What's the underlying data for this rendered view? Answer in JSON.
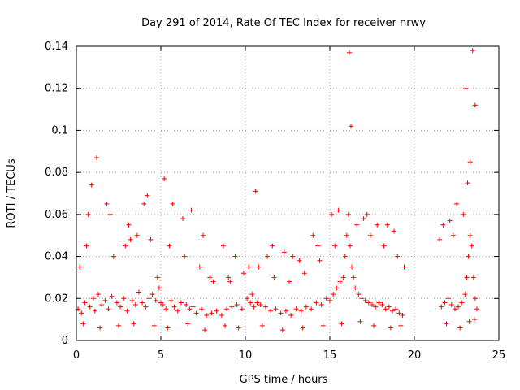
{
  "chart_data": {
    "type": "scatter",
    "title": "Day 291 of 2014, Rate Of TEC Index for receiver nrwy",
    "xlabel": "GPS time / hours",
    "ylabel": "ROTI / TECUs",
    "xlim": [
      0,
      25
    ],
    "ylim": [
      0,
      0.14
    ],
    "xticks": [
      0,
      5,
      10,
      15,
      20,
      25
    ],
    "xtick_labels": [
      "0",
      "5",
      "10",
      "15",
      "20",
      "25"
    ],
    "yticks": [
      0,
      0.02,
      0.04,
      0.06,
      0.08,
      0.1,
      0.12,
      0.14
    ],
    "ytick_labels": [
      "0",
      "0.02",
      "0.04",
      "0.06",
      "0.08",
      "0.1",
      "0.12",
      "0.14"
    ],
    "grid": true,
    "marker": "+",
    "series": [
      {
        "name": "ROTI",
        "color": "#ff0000",
        "x": [
          0.1,
          0.3,
          0.5,
          0.8,
          1.0,
          1.1,
          1.3,
          1.5,
          1.7,
          1.9,
          2.1,
          2.4,
          2.6,
          2.8,
          3.0,
          3.3,
          3.5,
          3.7,
          3.9,
          4.1,
          4.3,
          4.5,
          4.7,
          4.8,
          4.9,
          5.0,
          5.1,
          5.3,
          5.6,
          5.8,
          6.0,
          6.2,
          6.5,
          6.7,
          6.9,
          7.1,
          7.4,
          7.7,
          8.0,
          8.3,
          8.6,
          8.9,
          9.2,
          9.5,
          9.8,
          10.1,
          10.3,
          10.4,
          10.5,
          10.7,
          10.9,
          11.2,
          11.5,
          11.8,
          12.1,
          12.4,
          12.7,
          13.0,
          13.3,
          13.6,
          13.9,
          14.2,
          14.5,
          14.8,
          15.0,
          15.2,
          15.4,
          15.6,
          15.8,
          15.9,
          16.0,
          16.1,
          16.2,
          16.3,
          16.4,
          16.5,
          16.7,
          16.9,
          17.1,
          17.3,
          17.5,
          17.7,
          17.9,
          18.1,
          18.3,
          18.5,
          18.7,
          18.9,
          19.1,
          19.3,
          21.6,
          21.8,
          22.0,
          22.2,
          22.4,
          22.6,
          22.8,
          23.0,
          23.1,
          23.2,
          23.3,
          23.4,
          23.5,
          23.6,
          23.7,
          0.2,
          0.7,
          1.2,
          2.2,
          2.9,
          3.6,
          4.4,
          5.5,
          6.4,
          7.3,
          8.1,
          9.0,
          9.9,
          10.8,
          11.7,
          12.6,
          13.5,
          14.4,
          15.3,
          16.6,
          17.4,
          18.2,
          19.0,
          21.7,
          22.3,
          22.9,
          23.3,
          23.45,
          0.4,
          1.4,
          2.5,
          3.4,
          4.6,
          5.4,
          6.6,
          7.6,
          8.8,
          9.6,
          11.0,
          12.2,
          13.4,
          14.6,
          15.7,
          16.8,
          17.6,
          18.6,
          19.2,
          21.9,
          22.7,
          23.25,
          23.55,
          0.6,
          1.8,
          3.1,
          4.2,
          5.2,
          6.3,
          7.5,
          8.7,
          9.4,
          10.6,
          11.6,
          12.8,
          14.0,
          15.1,
          16.15,
          17.2,
          18.4,
          19.4,
          22.1,
          23.05,
          23.6,
          0.9,
          2.0,
          3.2,
          4.0,
          5.7,
          6.8,
          7.9,
          9.1,
          10.2,
          11.3,
          12.3,
          13.2,
          14.3,
          15.5,
          16.25,
          17.0,
          17.8,
          18.8,
          21.5,
          22.5,
          23.15
        ],
        "y": [
          0.015,
          0.013,
          0.018,
          0.016,
          0.02,
          0.014,
          0.022,
          0.017,
          0.019,
          0.015,
          0.021,
          0.018,
          0.016,
          0.02,
          0.014,
          0.019,
          0.017,
          0.023,
          0.018,
          0.016,
          0.02,
          0.022,
          0.019,
          0.03,
          0.025,
          0.018,
          0.017,
          0.015,
          0.019,
          0.016,
          0.014,
          0.018,
          0.017,
          0.015,
          0.016,
          0.013,
          0.015,
          0.012,
          0.013,
          0.014,
          0.012,
          0.015,
          0.016,
          0.017,
          0.015,
          0.02,
          0.018,
          0.022,
          0.016,
          0.018,
          0.017,
          0.016,
          0.014,
          0.015,
          0.013,
          0.014,
          0.012,
          0.015,
          0.014,
          0.016,
          0.015,
          0.018,
          0.017,
          0.02,
          0.019,
          0.022,
          0.025,
          0.028,
          0.03,
          0.04,
          0.05,
          0.06,
          0.045,
          0.035,
          0.03,
          0.025,
          0.022,
          0.02,
          0.019,
          0.018,
          0.017,
          0.016,
          0.018,
          0.017,
          0.015,
          0.016,
          0.014,
          0.015,
          0.013,
          0.012,
          0.016,
          0.018,
          0.02,
          0.017,
          0.015,
          0.016,
          0.018,
          0.022,
          0.03,
          0.04,
          0.05,
          0.045,
          0.03,
          0.02,
          0.015,
          0.035,
          0.06,
          0.087,
          0.04,
          0.045,
          0.05,
          0.048,
          0.045,
          0.04,
          0.035,
          0.028,
          0.03,
          0.032,
          0.035,
          0.03,
          0.028,
          0.032,
          0.038,
          0.045,
          0.055,
          0.05,
          0.045,
          0.04,
          0.055,
          0.05,
          0.06,
          0.085,
          0.138,
          0.008,
          0.006,
          0.007,
          0.008,
          0.007,
          0.006,
          0.008,
          0.005,
          0.007,
          0.006,
          0.007,
          0.005,
          0.006,
          0.007,
          0.008,
          0.009,
          0.007,
          0.006,
          0.007,
          0.008,
          0.006,
          0.009,
          0.01,
          0.045,
          0.065,
          0.055,
          0.069,
          0.077,
          0.058,
          0.05,
          0.045,
          0.04,
          0.071,
          0.045,
          0.04,
          0.05,
          0.06,
          0.137,
          0.06,
          0.055,
          0.035,
          0.057,
          0.12,
          0.112,
          0.074,
          0.06,
          0.048,
          0.065,
          0.065,
          0.062,
          0.03,
          0.028,
          0.035,
          0.04,
          0.042,
          0.038,
          0.045,
          0.062,
          0.102,
          0.058,
          0.055,
          0.052,
          0.048,
          0.065,
          0.075
        ]
      }
    ]
  }
}
